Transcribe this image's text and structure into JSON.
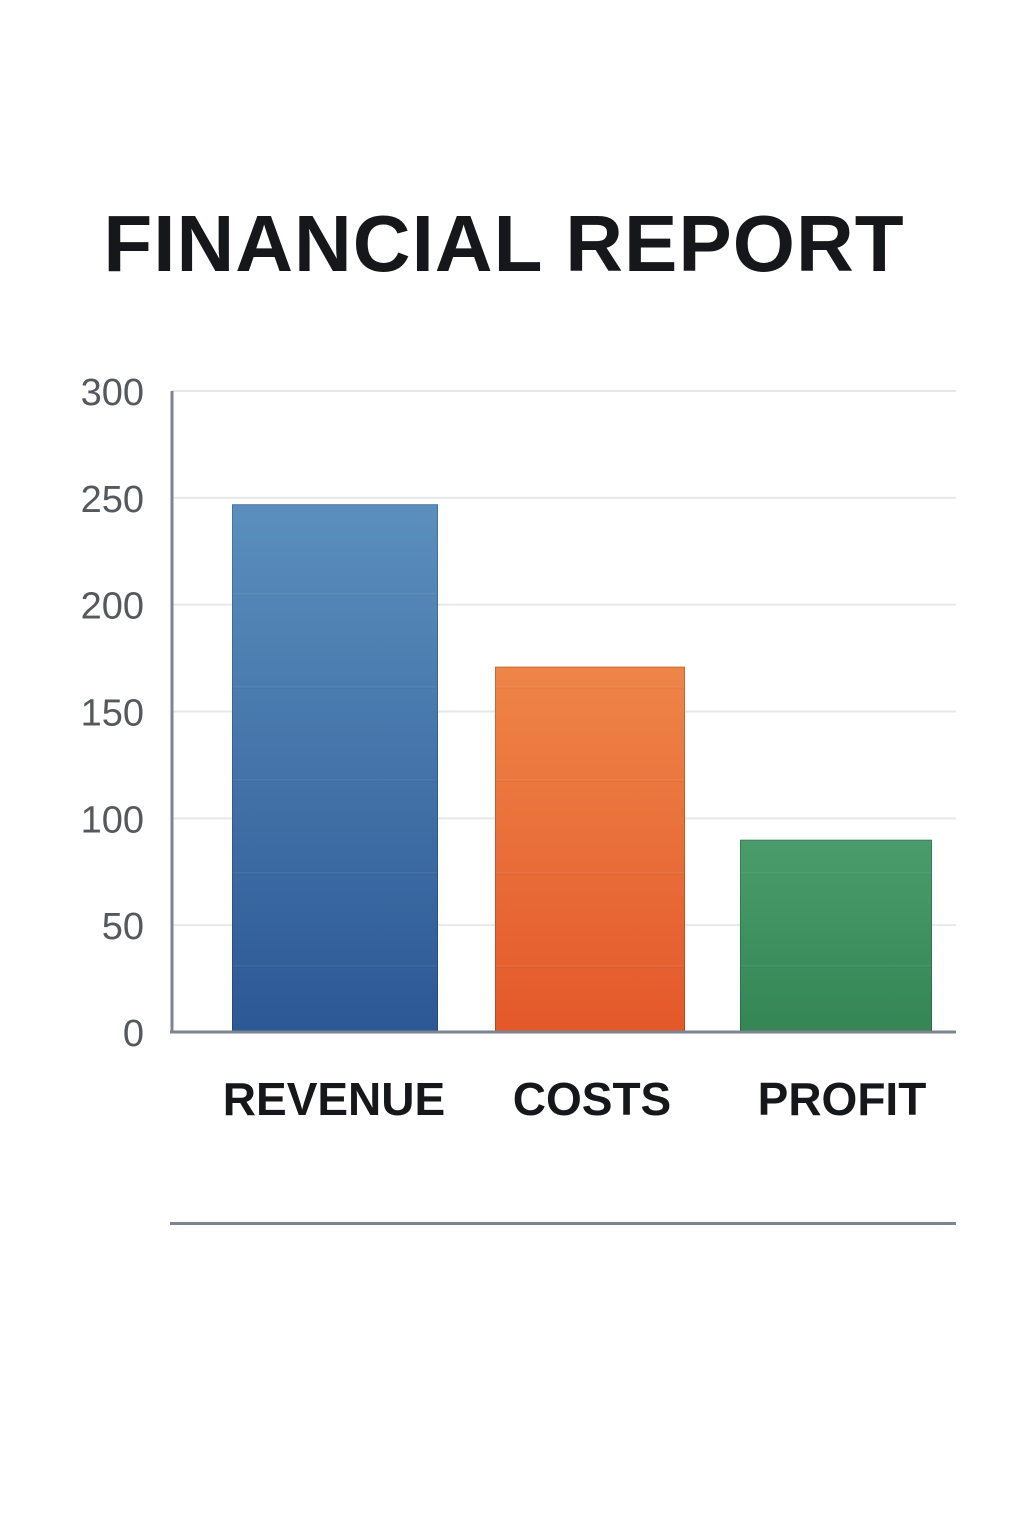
{
  "header": {
    "title": "FINANCIAL REPORT"
  },
  "chart_data": {
    "type": "bar",
    "title": "FINANCIAL REPORT",
    "xlabel": "",
    "ylabel": "",
    "categories": [
      "REVENUE",
      "COSTS",
      "PROFIT"
    ],
    "values": [
      247,
      171,
      90
    ],
    "ylim": [
      0,
      300
    ],
    "yticks": [
      0,
      50,
      100,
      150,
      200,
      250,
      300
    ],
    "grid": true,
    "legend": "none",
    "colors": {
      "REVENUE": {
        "top": "#5b8fbd",
        "bottom": "#2c5895"
      },
      "COSTS": {
        "top": "#ee8548",
        "bottom": "#e4582a"
      },
      "PROFIT": {
        "top": "#4a9d6b",
        "bottom": "#358555"
      }
    },
    "gridline_color": "#e6e8ea",
    "axis_color": "#7c8590",
    "tick_label_color": "#55595e",
    "category_label_color": "#15171a"
  }
}
